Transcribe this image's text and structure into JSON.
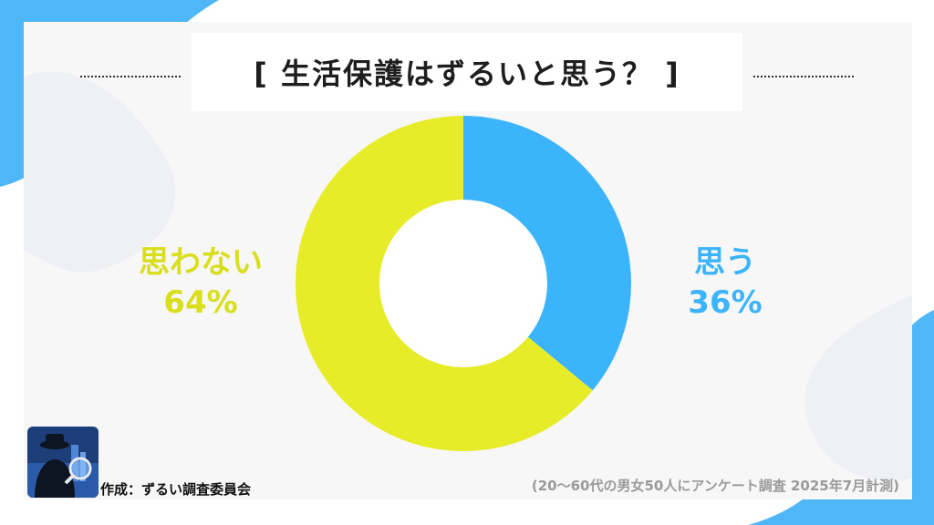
{
  "colors": {
    "yes": "#3bb4fb",
    "no": "#e6ec28",
    "accent_bg": "#4fb6f7"
  },
  "title": "[ 生活保護はずるいと思う？ ]",
  "chart_data": {
    "type": "pie",
    "title": "[ 生活保護はずるいと思う？ ]",
    "slices": [
      {
        "label": "思う",
        "value": 36,
        "value_label": "36%",
        "color": "#3bb4fb"
      },
      {
        "label": "思わない",
        "value": 64,
        "value_label": "64%",
        "color": "#e6ec28"
      }
    ]
  },
  "footer": {
    "author": "作成：ずるい調査委員会",
    "note": "(20～60代の男女50人にアンケート調査 2025年7月計測)"
  },
  "logo_icon": "detective-magnifier-icon"
}
